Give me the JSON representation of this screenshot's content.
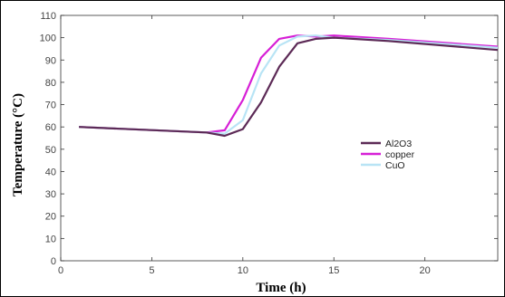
{
  "chart_data": {
    "type": "line",
    "xlabel": "Time (h)",
    "ylabel": "Temperature (°C)",
    "xlim": [
      0,
      24
    ],
    "ylim": [
      0,
      110
    ],
    "xticks": [
      0,
      5,
      10,
      15,
      20
    ],
    "yticks": [
      0,
      10,
      20,
      30,
      40,
      50,
      60,
      70,
      80,
      90,
      100,
      110
    ],
    "grid": false,
    "legend_position": "right-middle",
    "series": [
      {
        "name": "Al2O3",
        "color": "#5c2a56",
        "x": [
          1,
          8,
          9,
          10,
          11,
          12,
          13,
          14,
          15,
          18,
          24
        ],
        "y": [
          60,
          57.5,
          56,
          59,
          71,
          87,
          97.5,
          99.5,
          100,
          98.5,
          94.5
        ]
      },
      {
        "name": "copper",
        "color": "#d61fd6",
        "x": [
          1,
          8,
          9,
          10,
          11,
          12,
          13,
          14,
          15,
          18,
          24
        ],
        "y": [
          60,
          57.5,
          58.5,
          72,
          91,
          99.5,
          101,
          100.5,
          101,
          99.5,
          96
        ]
      },
      {
        "name": "CuO",
        "color": "#b8e4f5",
        "x": [
          1,
          8,
          9,
          10,
          11,
          12,
          13,
          14,
          15,
          18,
          24
        ],
        "y": [
          60,
          57.5,
          57,
          63,
          84,
          96.5,
          100.5,
          101,
          100,
          99,
          95.5
        ]
      }
    ]
  }
}
